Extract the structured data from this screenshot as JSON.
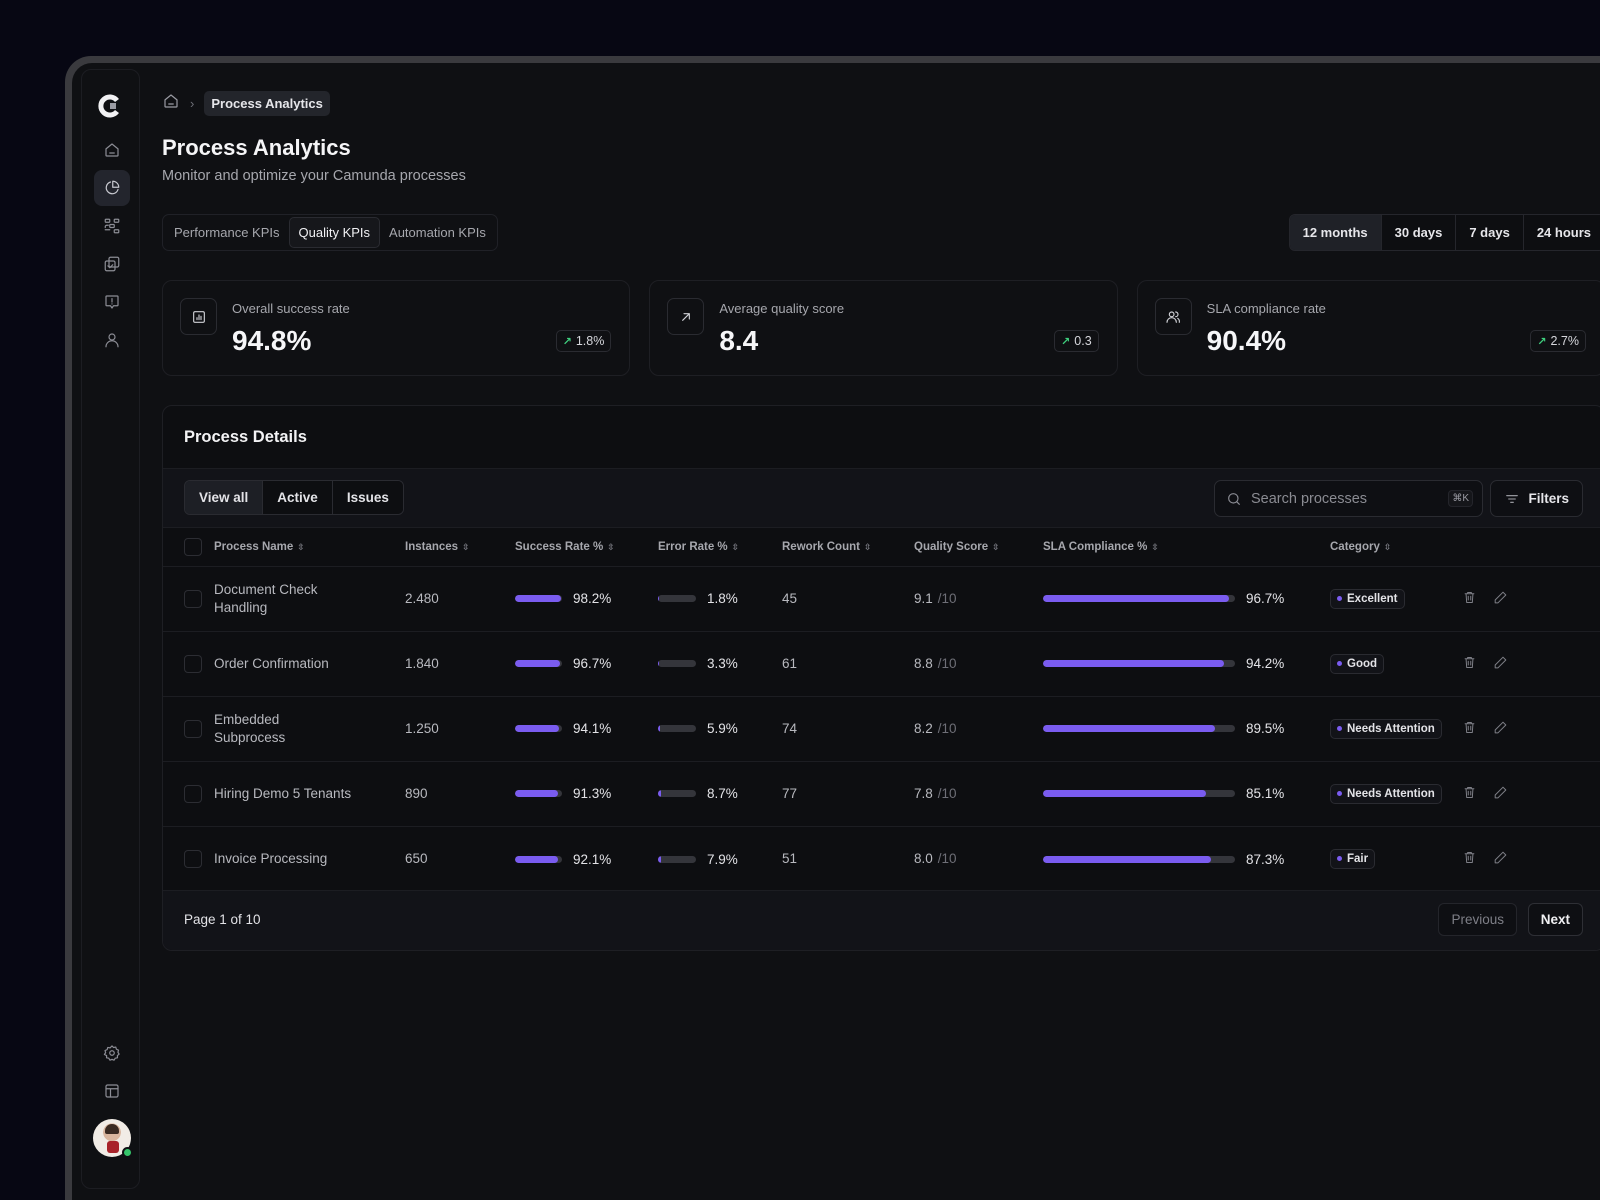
{
  "sidebar": {
    "logo": "camunda-logo",
    "items": [
      {
        "name": "home",
        "icon": "home-icon",
        "active": false
      },
      {
        "name": "analytics",
        "icon": "pie-chart-icon",
        "active": true
      },
      {
        "name": "processes",
        "icon": "workflow-icon",
        "active": false
      },
      {
        "name": "tasks",
        "icon": "tasks-check-icon",
        "active": false
      },
      {
        "name": "incidents",
        "icon": "alert-message-icon",
        "active": false
      },
      {
        "name": "users",
        "icon": "user-icon",
        "active": false
      }
    ],
    "bottom_items": [
      {
        "name": "settings",
        "icon": "gear-icon"
      },
      {
        "name": "layout",
        "icon": "layout-icon"
      }
    ],
    "user_status": "online"
  },
  "breadcrumb": {
    "home_icon": "home-icon",
    "current": "Process Analytics"
  },
  "header": {
    "title": "Process Analytics",
    "subtitle": "Monitor and optimize your Camunda processes"
  },
  "kpi_tabs": [
    {
      "label": "Performance KPIs",
      "active": false
    },
    {
      "label": "Quality KPIs",
      "active": true
    },
    {
      "label": "Automation KPIs",
      "active": false
    }
  ],
  "time_range": [
    {
      "label": "12 months",
      "active": true
    },
    {
      "label": "30 days",
      "active": false
    },
    {
      "label": "7 days",
      "active": false
    },
    {
      "label": "24 hours",
      "active": false
    }
  ],
  "kpis": [
    {
      "icon": "bar-chart-icon",
      "label": "Overall success rate",
      "value": "94.8%",
      "delta": "1.8%",
      "trend": "up"
    },
    {
      "icon": "arrow-up-right-icon",
      "label": "Average quality score",
      "value": "8.4",
      "delta": "0.3",
      "trend": "up"
    },
    {
      "icon": "users-icon",
      "label": "SLA compliance rate",
      "value": "90.4%",
      "delta": "2.7%",
      "trend": "up"
    }
  ],
  "process_details": {
    "title": "Process Details",
    "filters": [
      {
        "label": "View all",
        "active": true
      },
      {
        "label": "Active",
        "active": false
      },
      {
        "label": "Issues",
        "active": false
      }
    ],
    "search": {
      "placeholder": "Search processes",
      "value": "",
      "shortcut": "⌘K"
    },
    "filters_button": "Filters",
    "columns": [
      "Process Name",
      "Instances",
      "Success Rate %",
      "Error Rate %",
      "Rework Count",
      "Quality Score",
      "SLA Compliance %",
      "Category"
    ],
    "rows": [
      {
        "name": "Document Check Handling",
        "instances": "2.480",
        "success_rate": 98.2,
        "success_label": "98.2%",
        "error_rate": 1.8,
        "error_label": "1.8%",
        "rework": "45",
        "quality": "9.1",
        "quality_max": "/10",
        "sla": 96.7,
        "sla_label": "96.7%",
        "category": "Excellent"
      },
      {
        "name": "Order Confirmation",
        "instances": "1.840",
        "success_rate": 96.7,
        "success_label": "96.7%",
        "error_rate": 3.3,
        "error_label": "3.3%",
        "rework": "61",
        "quality": "8.8",
        "quality_max": "/10",
        "sla": 94.2,
        "sla_label": "94.2%",
        "category": "Good"
      },
      {
        "name": "Embedded Subprocess",
        "instances": "1.250",
        "success_rate": 94.1,
        "success_label": "94.1%",
        "error_rate": 5.9,
        "error_label": "5.9%",
        "rework": "74",
        "quality": "8.2",
        "quality_max": "/10",
        "sla": 89.5,
        "sla_label": "89.5%",
        "category": "Needs Attention"
      },
      {
        "name": "Hiring Demo 5 Tenants",
        "instances": "890",
        "success_rate": 91.3,
        "success_label": "91.3%",
        "error_rate": 8.7,
        "error_label": "8.7%",
        "rework": "77",
        "quality": "7.8",
        "quality_max": "/10",
        "sla": 85.1,
        "sla_label": "85.1%",
        "category": "Needs Attention"
      },
      {
        "name": "Invoice Processing",
        "instances": "650",
        "success_rate": 92.1,
        "success_label": "92.1%",
        "error_rate": 7.9,
        "error_label": "7.9%",
        "rework": "51",
        "quality": "8.0",
        "quality_max": "/10",
        "sla": 87.3,
        "sla_label": "87.3%",
        "category": "Fair"
      }
    ],
    "pagination": {
      "info": "Page 1 of 10",
      "previous": "Previous",
      "next": "Next"
    }
  },
  "colors": {
    "accent": "#7a5cf0",
    "trend_up": "#3fcf7e",
    "online": "#35c46a",
    "background": "#0f1013"
  }
}
